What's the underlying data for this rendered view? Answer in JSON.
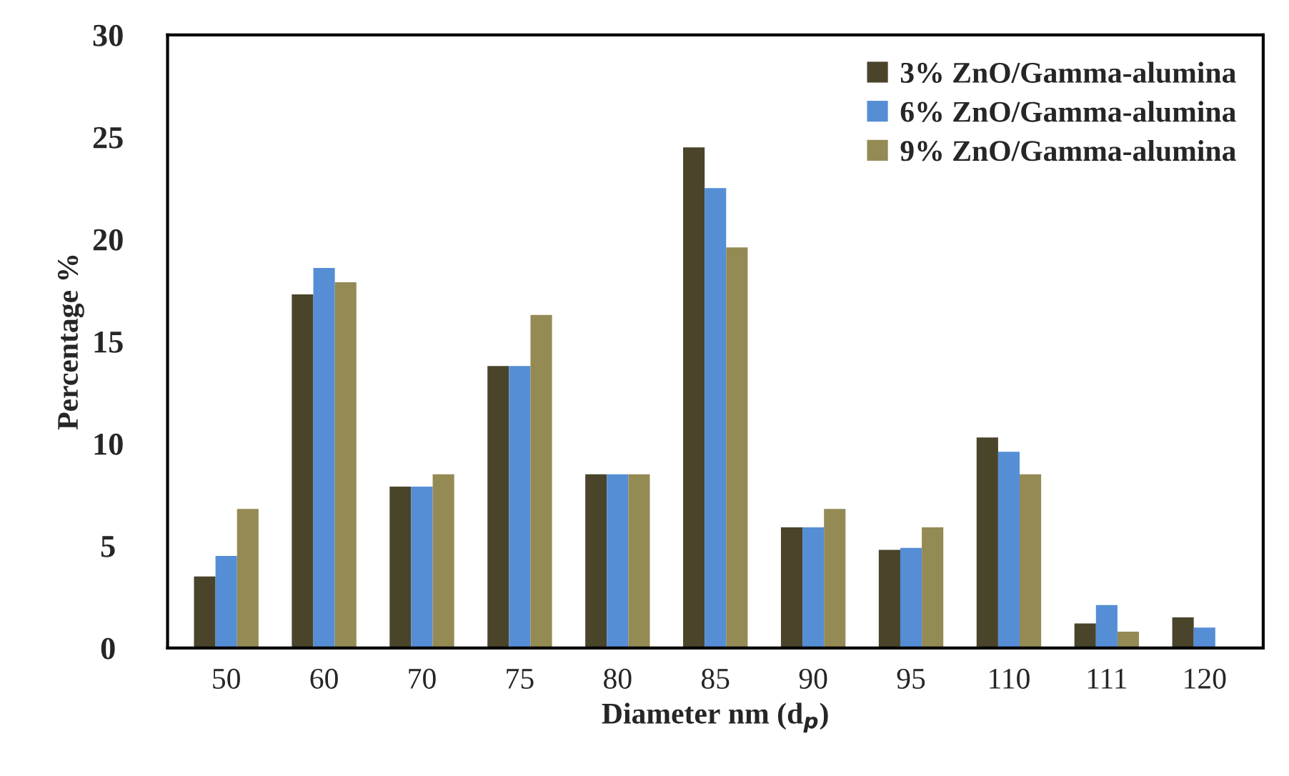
{
  "chart_data": {
    "type": "bar",
    "xlabel": "Diameter nm (d$_{p}$)",
    "ylabel": "Percentage %",
    "categories": [
      "50",
      "60",
      "70",
      "75",
      "80",
      "85",
      "90",
      "95",
      "110",
      "111",
      "120"
    ],
    "series": [
      {
        "name": "3% ZnO/Gamma-alumina",
        "color": "#4a442b",
        "values": [
          3.5,
          17.3,
          7.9,
          13.8,
          8.5,
          24.5,
          5.9,
          4.8,
          10.3,
          1.2,
          1.5
        ]
      },
      {
        "name": "6% ZnO/Gamma-alumina",
        "color": "#558ed5",
        "values": [
          4.5,
          18.6,
          7.9,
          13.8,
          8.5,
          22.5,
          5.9,
          4.9,
          9.6,
          2.1,
          1.0
        ]
      },
      {
        "name": "9% ZnO/Gamma-alumina",
        "color": "#948a54",
        "values": [
          6.8,
          17.9,
          8.5,
          16.3,
          8.5,
          19.6,
          6.8,
          5.9,
          8.5,
          0.8,
          null
        ]
      }
    ],
    "ylim": [
      0,
      30
    ],
    "yticks": [
      0,
      5,
      10,
      15,
      20,
      25,
      30
    ],
    "grid": false,
    "legend": "top right"
  }
}
